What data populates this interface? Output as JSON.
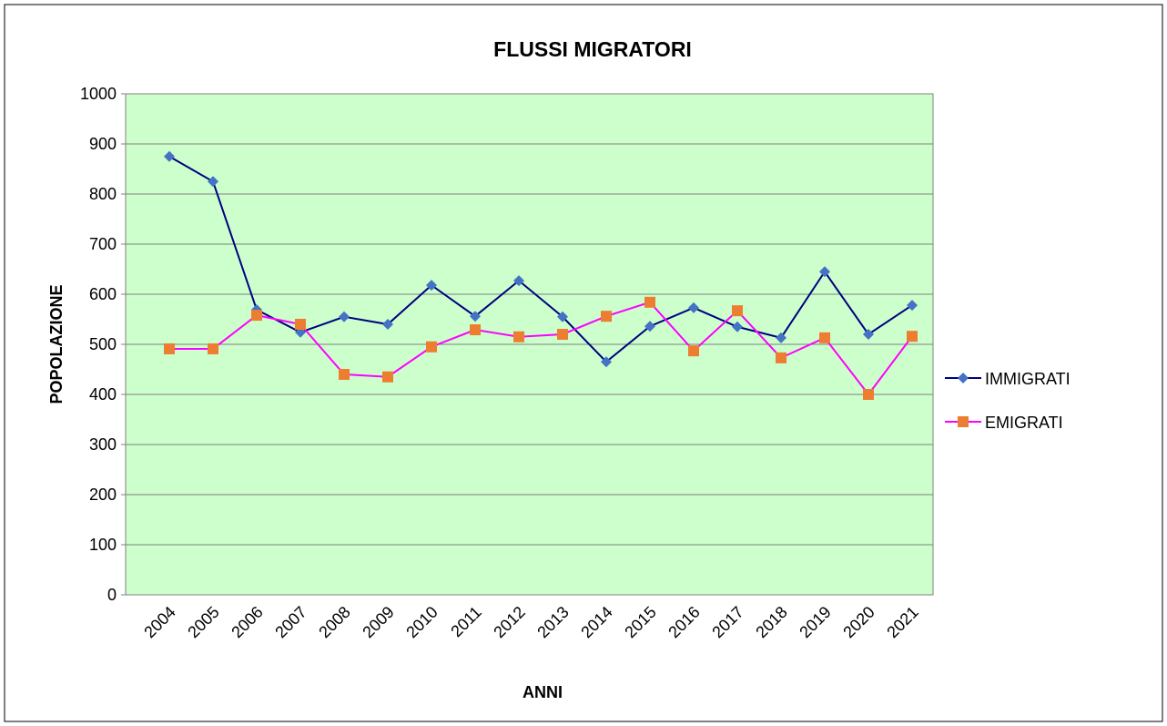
{
  "chart_data": {
    "type": "line",
    "title": "FLUSSI MIGRATORI",
    "x_label": "ANNI",
    "y_label": "POPOLAZIONE",
    "categories": [
      "2004",
      "2005",
      "2006",
      "2007",
      "2008",
      "2009",
      "2010",
      "2011",
      "2012",
      "2013",
      "2014",
      "2015",
      "2016",
      "2017",
      "2018",
      "2019",
      "2020",
      "2021"
    ],
    "series": [
      {
        "name": "IMMIGRATI",
        "color": "#000080",
        "marker_color": "#4472c4",
        "marker": "diamond",
        "values": [
          875,
          825,
          569,
          524,
          555,
          540,
          618,
          556,
          627,
          555,
          465,
          536,
          573,
          535,
          513,
          645,
          520,
          578
        ]
      },
      {
        "name": "EMIGRATI",
        "color": "#ff00ff",
        "marker_color": "#ed7d31",
        "marker": "square",
        "values": [
          491,
          491,
          558,
          540,
          440,
          435,
          495,
          529,
          515,
          520,
          556,
          584,
          487,
          567,
          473,
          513,
          400,
          516
        ]
      }
    ],
    "ylim": [
      0,
      1000
    ],
    "yticks": [
      0,
      100,
      200,
      300,
      400,
      500,
      600,
      700,
      800,
      900,
      1000
    ],
    "grid": true,
    "plot_background": "#ccffcc",
    "legend": "right"
  }
}
